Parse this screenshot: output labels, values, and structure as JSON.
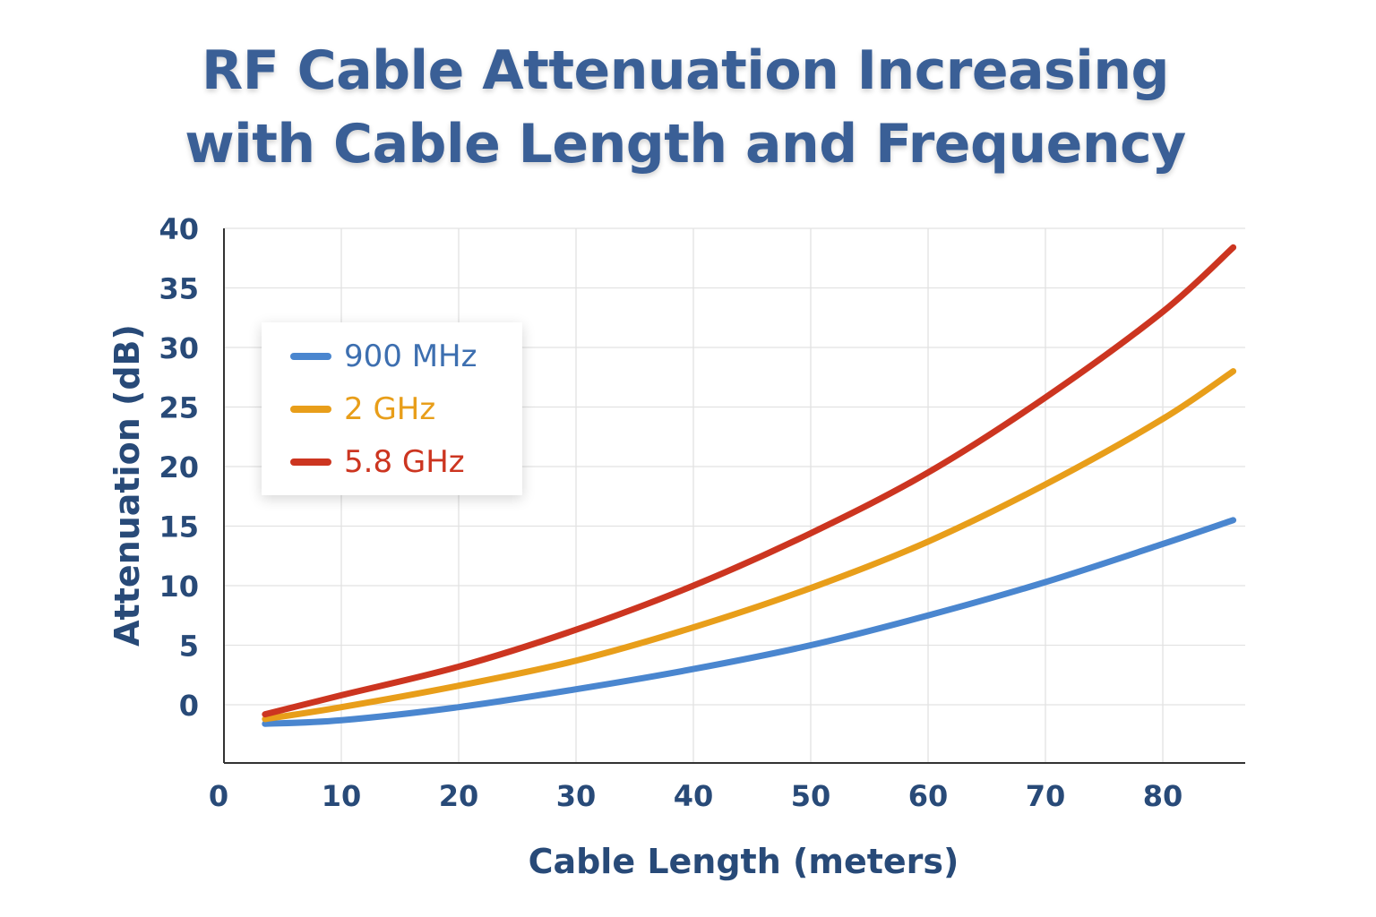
{
  "chart_data": {
    "type": "line",
    "title": [
      "RF Cable Attenuation Increasing",
      "with Cable Length and Frequency"
    ],
    "xlabel": "Cable Length (meters)",
    "ylabel": "Attenuation (dB)",
    "xlim": [
      0,
      87
    ],
    "ylim": [
      -5,
      40
    ],
    "xticks": [
      0,
      10,
      20,
      30,
      40,
      50,
      60,
      70,
      80
    ],
    "yticks": [
      0,
      5,
      10,
      15,
      20,
      25,
      30,
      35,
      40
    ],
    "grid": true,
    "legend_position": "top-left",
    "x": [
      3.5,
      10,
      20,
      30,
      40,
      50,
      60,
      70,
      80,
      86
    ],
    "series": [
      {
        "name": "900 MHz",
        "color": "#4a86cf",
        "values": [
          -1.6,
          -1.3,
          -0.2,
          1.3,
          3.0,
          5.0,
          7.5,
          10.3,
          13.5,
          15.5
        ]
      },
      {
        "name": "2 GHz",
        "color": "#e89e1a",
        "values": [
          -1.2,
          -0.2,
          1.6,
          3.7,
          6.5,
          9.8,
          13.7,
          18.5,
          24.0,
          28.0
        ]
      },
      {
        "name": "5.8 GHz",
        "color": "#cc3520",
        "values": [
          -0.8,
          0.8,
          3.2,
          6.3,
          10.0,
          14.4,
          19.5,
          25.8,
          33.0,
          38.4
        ]
      }
    ]
  }
}
